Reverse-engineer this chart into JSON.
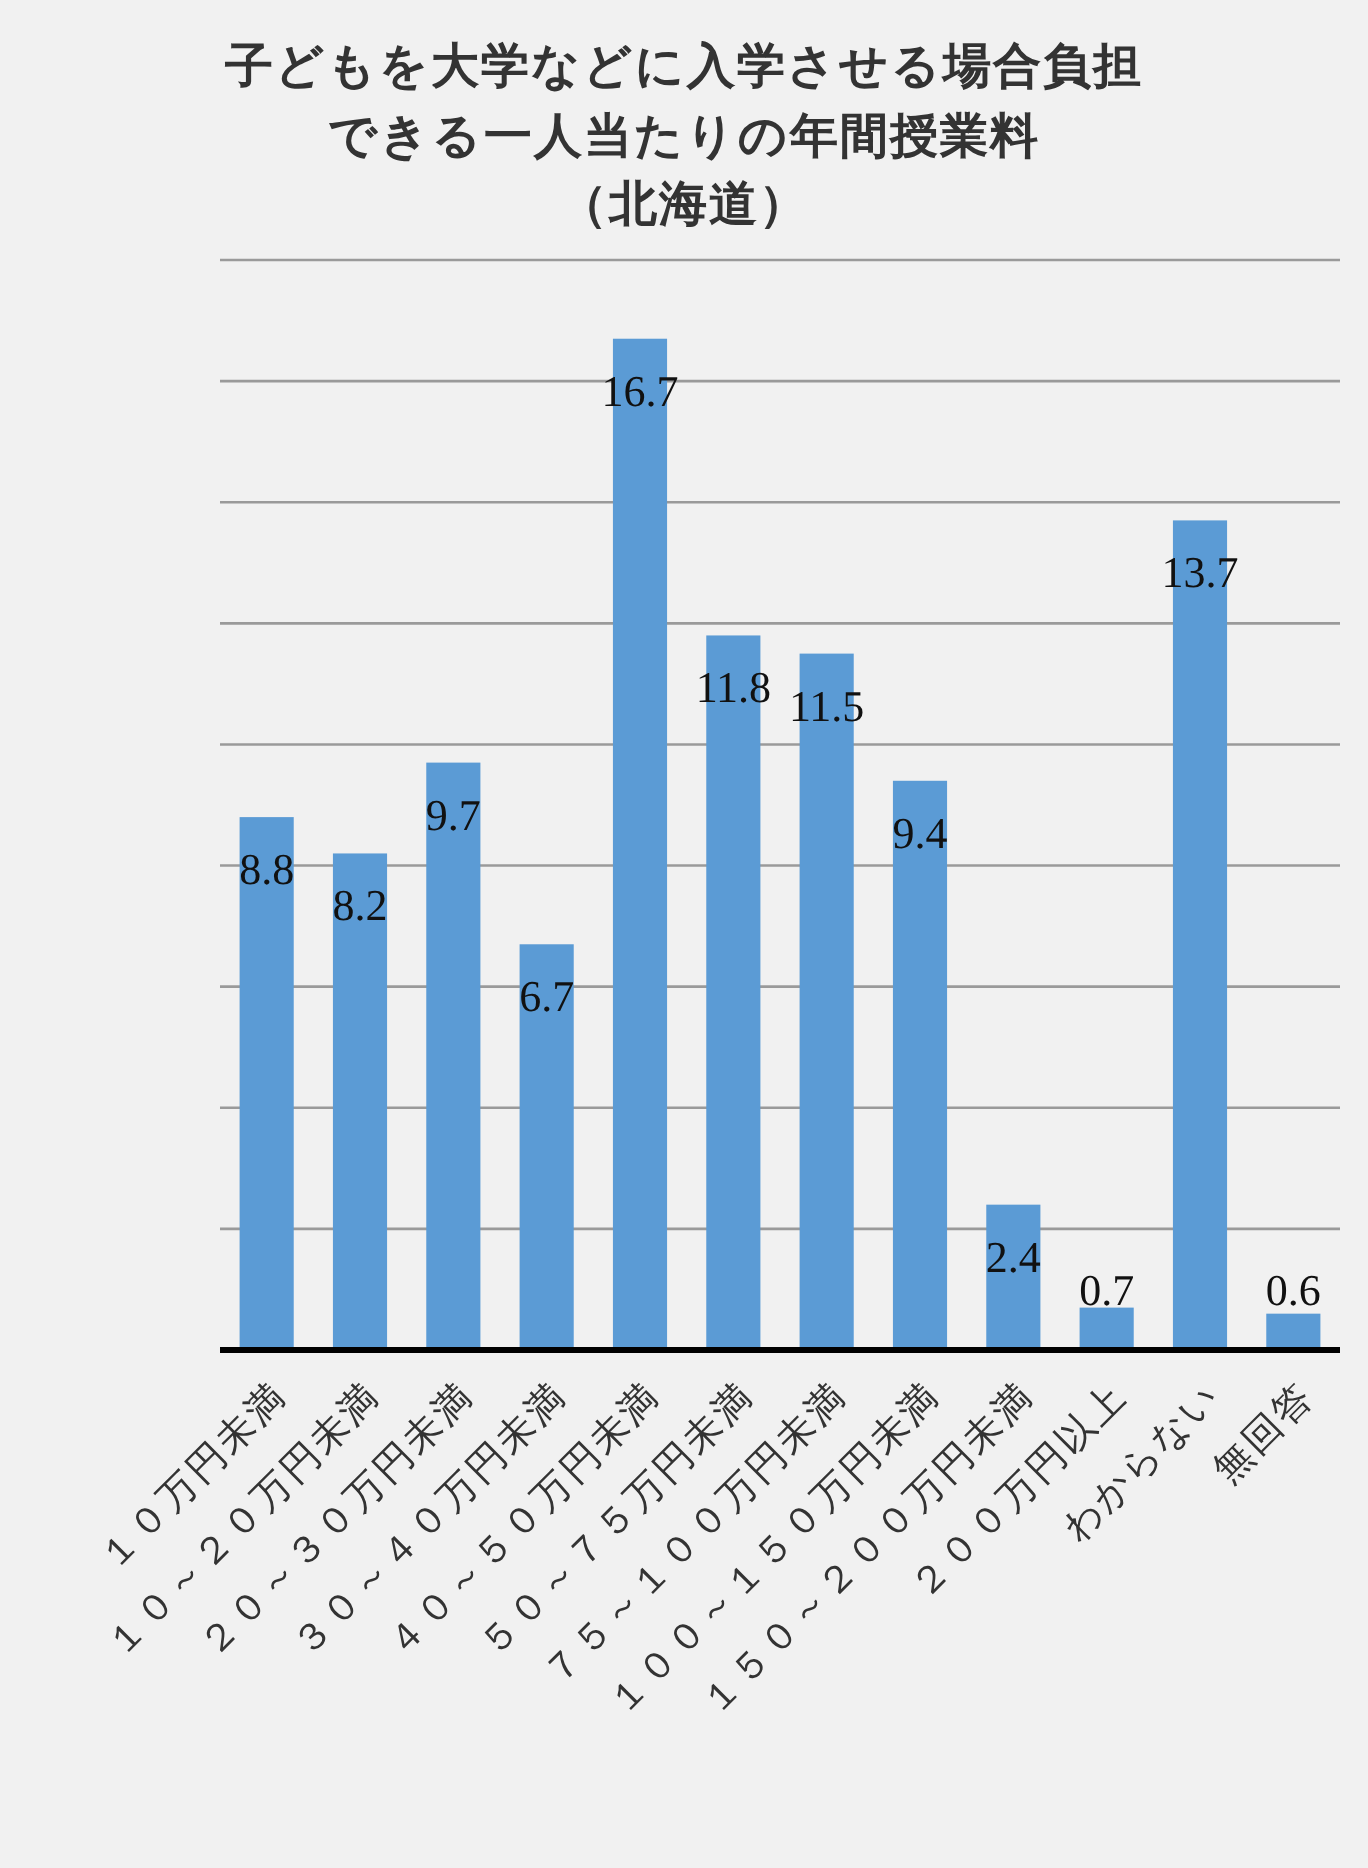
{
  "chart_data": {
    "type": "bar",
    "title": "子どもを大学などに入学させる場合負担できる一人当たりの年間授業料",
    "subtitle": "（北海道）",
    "categories": [
      "１０万円未満",
      "１０～２０万円未満",
      "２０～３０万円未満",
      "３０～４０万円未満",
      "４０～５０万円未満",
      "５０～７５万円未満",
      "７５～１００万円未満",
      "１００～１５０万円未満",
      "１５０～２００万円未満",
      "２００万円以上",
      "わからない",
      "無回答"
    ],
    "values": [
      8.8,
      8.2,
      9.7,
      6.7,
      16.7,
      11.8,
      11.5,
      9.4,
      2.4,
      0.7,
      13.7,
      0.6
    ],
    "color": "#5b9bd5",
    "ylim": [
      0,
      18
    ],
    "yticks": [
      {
        "value": 0,
        "label": null
      },
      {
        "value": 2,
        "label": null
      },
      {
        "value": 4,
        "label": null
      },
      {
        "value": 6,
        "label": null
      },
      {
        "value": 8,
        "label": null
      },
      {
        "value": 10,
        "label": null
      },
      {
        "value": 12,
        "label": null
      },
      {
        "value": 14,
        "label": null
      },
      {
        "value": 16,
        "label": null
      },
      {
        "value": 18,
        "label": null
      }
    ],
    "grid": "y",
    "tick_labels": "x",
    "data_labels": true
  }
}
